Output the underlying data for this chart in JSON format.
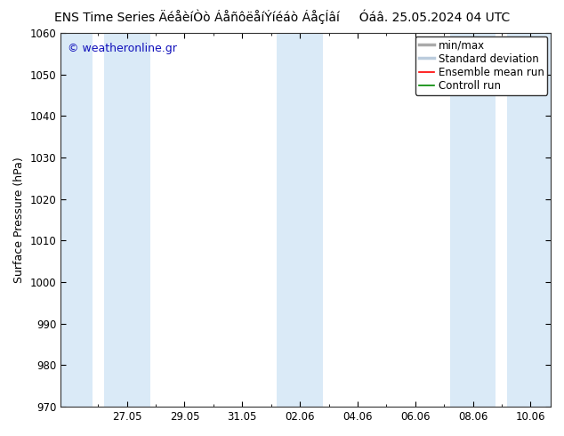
{
  "title": "ENS Time Series ÄéåèíÒò ÁåñôëåíÝíéáò ÁåçÍâí     Óáâ. 25.05.2024 04 UTC",
  "ylabel": "Surface Pressure (hPa)",
  "watermark": "© weatheronline.gr",
  "ylim": [
    970,
    1060
  ],
  "ytick_step": 10,
  "background_color": "#ffffff",
  "plot_bg_color": "#ffffff",
  "shaded_color": "#daeaf7",
  "x_ticks_labels": [
    "27.05",
    "29.05",
    "31.05",
    "02.06",
    "04.06",
    "06.06",
    "08.06",
    "10.06"
  ],
  "x_ticks_positions": [
    2.0,
    4.0,
    6.0,
    8.0,
    10.0,
    12.0,
    14.0,
    16.0
  ],
  "x_minor_positions": [
    1.0,
    3.0,
    5.0,
    7.0,
    9.0,
    11.0,
    13.0,
    15.0
  ],
  "x_min": -0.3,
  "x_max": 16.7,
  "shaded_bands": [
    [
      -0.3,
      0.8
    ],
    [
      1.2,
      2.8
    ],
    [
      7.2,
      8.8
    ],
    [
      13.2,
      14.8
    ],
    [
      15.2,
      16.7
    ]
  ],
  "legend_items": [
    {
      "label": "min/max",
      "color": "#aaaaaa",
      "lw": 2.5,
      "ls": "-"
    },
    {
      "label": "Standard deviation",
      "color": "#bbccdd",
      "lw": 2.5,
      "ls": "-"
    },
    {
      "label": "Ensemble mean run",
      "color": "#ff0000",
      "lw": 1.2,
      "ls": "-"
    },
    {
      "label": "Controll run",
      "color": "#008800",
      "lw": 1.2,
      "ls": "-"
    }
  ],
  "title_fontsize": 10,
  "tick_fontsize": 8.5,
  "label_fontsize": 9,
  "watermark_color": "#1111bb",
  "watermark_fontsize": 9
}
